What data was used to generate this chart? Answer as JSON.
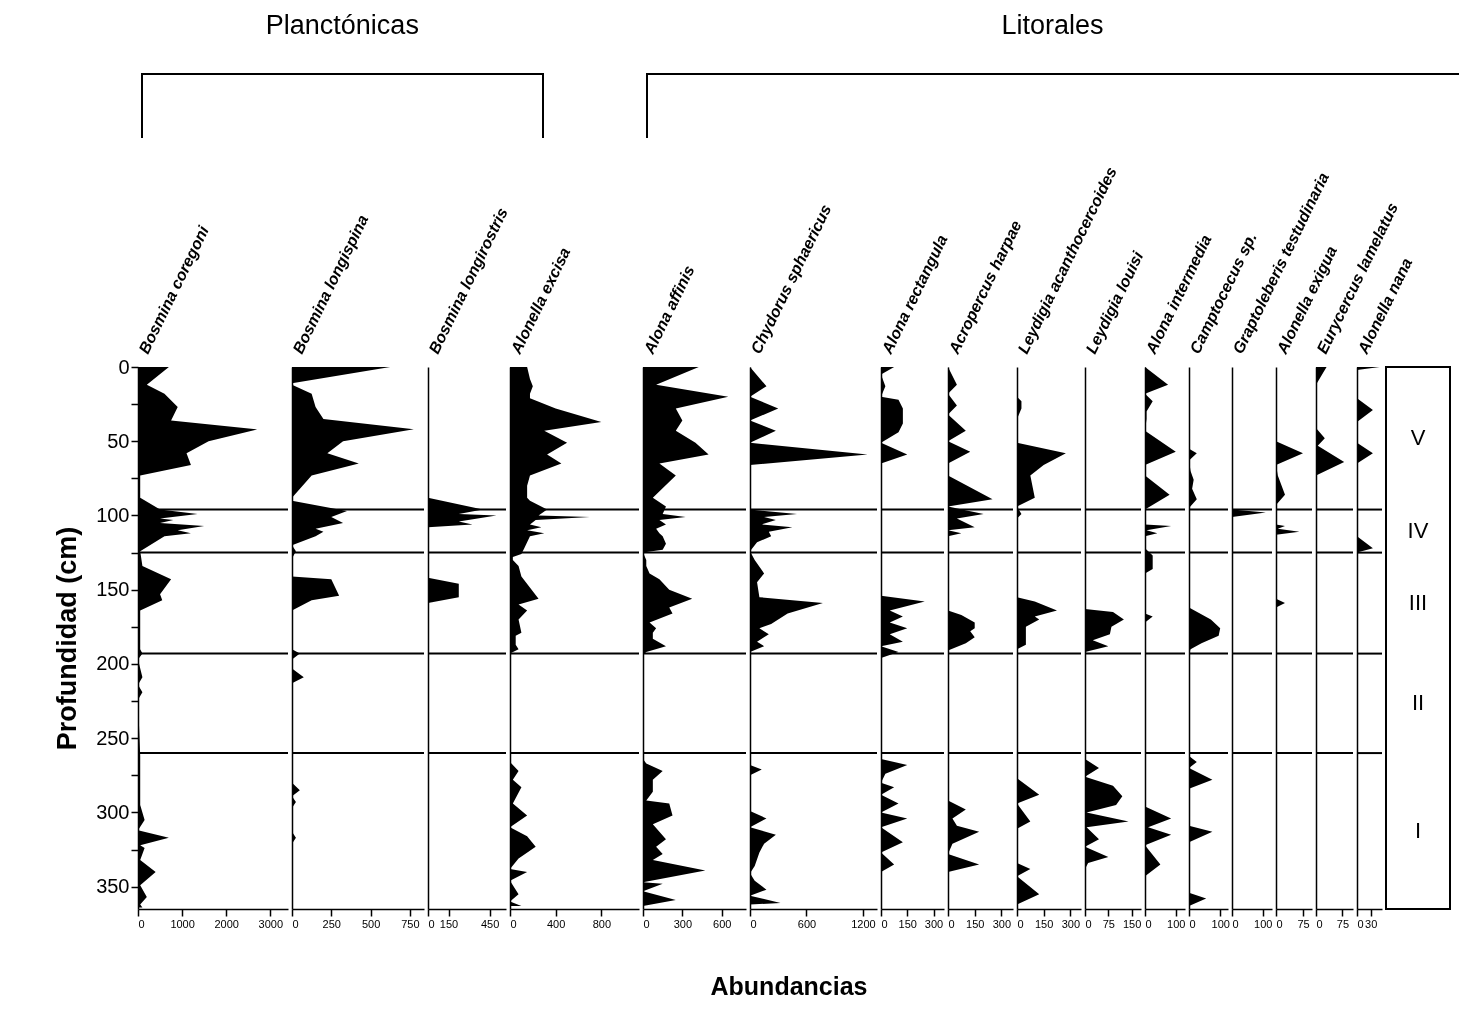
{
  "chart_data": [
    {
      "type": "area",
      "orientation": "horizontal",
      "title": "Bosmina coregoni",
      "ylabel": "Profundidad (cm)",
      "annotations": [
        "Planctónicas"
      ],
      "color": "#000000",
      "x": [
        0,
        12,
        18,
        27,
        36,
        42,
        50,
        58,
        66,
        73,
        88,
        96,
        99,
        102,
        103,
        105,
        107,
        110,
        112,
        114,
        124,
        134,
        143,
        153,
        157,
        164,
        190,
        193,
        197,
        209,
        214,
        219,
        224,
        262,
        295,
        305,
        312,
        317,
        322,
        324,
        332,
        340,
        349,
        357,
        362,
        364
      ],
      "values": [
        700,
        200,
        600,
        900,
        750,
        2700,
        1600,
        1100,
        1200,
        50,
        50,
        500,
        1350,
        500,
        800,
        500,
        1500,
        900,
        1200,
        600,
        50,
        100,
        750,
        500,
        550,
        50,
        50,
        100,
        0,
        100,
        0,
        100,
        0,
        50,
        50,
        150,
        0,
        700,
        50,
        150,
        50,
        400,
        50,
        200,
        50,
        100
      ],
      "xlim": [
        0,
        3400
      ],
      "xticks": [
        0,
        1000,
        2000,
        3000
      ],
      "ylim": [
        365,
        0
      ],
      "yticks": [
        0,
        {
          "value": 25,
          "label": null
        },
        50,
        {
          "value": 75,
          "label": null
        },
        100,
        {
          "value": 125,
          "label": null
        },
        150,
        {
          "value": 175,
          "label": null
        },
        200,
        {
          "value": 225,
          "label": null
        },
        250,
        {
          "value": 275,
          "label": null
        },
        300,
        {
          "value": 325,
          "label": null
        },
        350
      ],
      "ref_lines": [
        {
          "axis": "y",
          "value": 96
        },
        {
          "axis": "y",
          "value": 125
        },
        {
          "axis": "y",
          "value": 193
        },
        {
          "axis": "y",
          "value": 260
        }
      ]
    },
    {
      "type": "area",
      "orientation": "horizontal",
      "title": "Bosmina longispina",
      "color": "#000000",
      "tick_labels": "x",
      "x": [
        0,
        11,
        12,
        18,
        27,
        35,
        42,
        50,
        58,
        65,
        73,
        88,
        90,
        97,
        101,
        105,
        109,
        111,
        114,
        120,
        124,
        129,
        141,
        143,
        154,
        157,
        164,
        190,
        193,
        197,
        203,
        209,
        213,
        280,
        285,
        289,
        293,
        297,
        313,
        317,
        321,
        364
      ],
      "values": [
        625,
        0,
        0,
        125,
        150,
        200,
        775,
        325,
        225,
        425,
        125,
        0,
        0,
        350,
        250,
        325,
        150,
        200,
        150,
        0,
        25,
        0,
        0,
        250,
        300,
        125,
        0,
        0,
        50,
        0,
        0,
        75,
        0,
        0,
        50,
        0,
        25,
        0,
        0,
        25,
        0,
        0
      ],
      "xlim": [
        0,
        840
      ],
      "xticks": [
        0,
        250,
        500,
        750
      ],
      "ylim": [
        365,
        0
      ],
      "ref_lines": [
        {
          "axis": "y",
          "value": 96
        },
        {
          "axis": "y",
          "value": 125
        },
        {
          "axis": "y",
          "value": 193
        },
        {
          "axis": "y",
          "value": 260
        }
      ]
    },
    {
      "type": "area",
      "orientation": "horizontal",
      "title": "Bosmina longirostris",
      "color": "#000000",
      "tick_labels": "x",
      "x": [
        0,
        88,
        96,
        99,
        100,
        104,
        106,
        108,
        142,
        146,
        155,
        159,
        364
      ],
      "values": [
        0,
        0,
        400,
        225,
        500,
        225,
        325,
        0,
        0,
        225,
        225,
        0,
        0
      ],
      "xlim": [
        0,
        570
      ],
      "xticks": [
        0,
        150,
        450
      ],
      "ylim": [
        365,
        0
      ],
      "ref_lines": [
        {
          "axis": "y",
          "value": 96
        },
        {
          "axis": "y",
          "value": 125
        },
        {
          "axis": "y",
          "value": 193
        },
        {
          "axis": "y",
          "value": 260
        }
      ]
    },
    {
      "type": "area",
      "orientation": "horizontal",
      "title": "Alonella excisa",
      "color": "#000000",
      "tick_labels": "x",
      "x": [
        0,
        8,
        13,
        18,
        21,
        28,
        37,
        43,
        51,
        59,
        65,
        73,
        80,
        88,
        90,
        96,
        100,
        101,
        103,
        106,
        108,
        110,
        112,
        114,
        122,
        126,
        128,
        130,
        134,
        141,
        156,
        160,
        164,
        170,
        179,
        181,
        187,
        190,
        193,
        266,
        272,
        278,
        283,
        294,
        302,
        310,
        316,
        323,
        331,
        338,
        340,
        346,
        355,
        360,
        363
      ],
      "values": [
        150,
        175,
        200,
        175,
        175,
        400,
        800,
        300,
        500,
        325,
        450,
        175,
        150,
        150,
        175,
        325,
        250,
        700,
        225,
        175,
        275,
        150,
        300,
        175,
        125,
        100,
        25,
        25,
        75,
        100,
        250,
        75,
        150,
        75,
        100,
        50,
        50,
        75,
        0,
        0,
        75,
        25,
        100,
        25,
        150,
        0,
        150,
        225,
        75,
        0,
        150,
        0,
        75,
        0,
        100
      ],
      "xlim": [
        0,
        1130
      ],
      "xticks": [
        0,
        400,
        800
      ],
      "ylim": [
        365,
        0
      ],
      "ref_lines": [
        {
          "axis": "y",
          "value": 96
        },
        {
          "axis": "y",
          "value": 125
        },
        {
          "axis": "y",
          "value": 193
        },
        {
          "axis": "y",
          "value": 260
        }
      ]
    },
    {
      "type": "area",
      "orientation": "horizontal",
      "title": "Alona affinis",
      "annotations": [
        "Litorales"
      ],
      "color": "#000000",
      "tick_labels": "x",
      "x": [
        0,
        12,
        20,
        28,
        36,
        43,
        51,
        59,
        65,
        73,
        88,
        94,
        99,
        101,
        103,
        106,
        109,
        112,
        114,
        119,
        123,
        125,
        130,
        134,
        139,
        143,
        150,
        156,
        162,
        166,
        172,
        176,
        179,
        183,
        188,
        192,
        194,
        264,
        267,
        272,
        278,
        286,
        292,
        294,
        302,
        308,
        318,
        323,
        328,
        332,
        339,
        347,
        348,
        353,
        359,
        363
      ],
      "values": [
        425,
        100,
        650,
        250,
        300,
        250,
        400,
        500,
        125,
        250,
        75,
        175,
        150,
        325,
        125,
        175,
        100,
        125,
        150,
        175,
        150,
        0,
        25,
        25,
        50,
        125,
        200,
        375,
        200,
        225,
        50,
        100,
        75,
        75,
        175,
        25,
        0,
        0,
        25,
        150,
        75,
        75,
        25,
        200,
        225,
        75,
        175,
        100,
        150,
        75,
        475,
        0,
        150,
        0,
        250,
        0
      ],
      "xlim": [
        0,
        785
      ],
      "xticks": [
        0,
        300,
        600
      ],
      "ylim": [
        365,
        0
      ],
      "ref_lines": [
        {
          "axis": "y",
          "value": 96
        },
        {
          "axis": "y",
          "value": 125
        },
        {
          "axis": "y",
          "value": 193
        },
        {
          "axis": "y",
          "value": 260
        }
      ]
    },
    {
      "type": "area",
      "orientation": "horizontal",
      "title": "Chydorus sphaericus",
      "xlabel": "Abundancias",
      "color": "#000000",
      "tick_labels": "x",
      "x": [
        0,
        13,
        20,
        28,
        36,
        43,
        51,
        59,
        66,
        96,
        99,
        101,
        103,
        106,
        108,
        111,
        114,
        118,
        124,
        130,
        139,
        145,
        155,
        159,
        166,
        173,
        176,
        180,
        185,
        188,
        192,
        268,
        271,
        275,
        299,
        304,
        310,
        315,
        321,
        327,
        336,
        341,
        346,
        352,
        356,
        361,
        362
      ],
      "values": [
        0,
        175,
        0,
        300,
        0,
        275,
        0,
        1250,
        0,
        0,
        500,
        150,
        275,
        125,
        450,
        200,
        225,
        75,
        0,
        50,
        150,
        75,
        100,
        775,
        400,
        225,
        100,
        200,
        75,
        150,
        0,
        0,
        125,
        0,
        0,
        175,
        0,
        275,
        150,
        100,
        50,
        0,
        50,
        175,
        0,
        325,
        0
      ],
      "xlim": [
        0,
        1350
      ],
      "xticks": [
        0,
        600,
        1200
      ],
      "ylim": [
        365,
        0
      ],
      "ref_lines": [
        {
          "axis": "y",
          "value": 96
        },
        {
          "axis": "y",
          "value": 125
        },
        {
          "axis": "y",
          "value": 193
        },
        {
          "axis": "y",
          "value": 260
        }
      ]
    },
    {
      "type": "area",
      "orientation": "horizontal",
      "title": "Alona rectangula",
      "color": "#000000",
      "tick_labels": "x",
      "x": [
        0,
        5,
        13,
        20,
        22,
        28,
        38,
        44,
        51,
        59,
        65,
        154,
        158,
        164,
        168,
        172,
        176,
        180,
        185,
        188,
        192,
        196,
        264,
        268,
        274,
        280,
        283,
        288,
        294,
        300,
        304,
        310,
        320,
        327,
        335,
        340,
        364
      ],
      "values": [
        75,
        0,
        25,
        0,
        100,
        125,
        125,
        100,
        0,
        150,
        0,
        0,
        250,
        50,
        125,
        50,
        150,
        50,
        125,
        0,
        100,
        0,
        0,
        150,
        25,
        0,
        75,
        0,
        100,
        0,
        150,
        0,
        125,
        0,
        75,
        0,
        0
      ],
      "xlim": [
        0,
        360
      ],
      "xticks": [
        0,
        150,
        300
      ],
      "ylim": [
        365,
        0
      ],
      "ref_lines": [
        {
          "axis": "y",
          "value": 96
        },
        {
          "axis": "y",
          "value": 125
        },
        {
          "axis": "y",
          "value": 193
        },
        {
          "axis": "y",
          "value": 260
        }
      ]
    },
    {
      "type": "area",
      "orientation": "horizontal",
      "title": "Acropercus harpae",
      "color": "#000000",
      "tick_labels": "x",
      "x": [
        0,
        12,
        18,
        26,
        32,
        43,
        50,
        57,
        65,
        73,
        89,
        94,
        99,
        102,
        108,
        110,
        112,
        114,
        164,
        167,
        172,
        176,
        178,
        182,
        186,
        191,
        194,
        292,
        298,
        304,
        309,
        313,
        321,
        328,
        335,
        340,
        364
      ],
      "values": [
        0,
        50,
        0,
        50,
        0,
        100,
        0,
        125,
        0,
        0,
        250,
        0,
        200,
        50,
        150,
        0,
        75,
        0,
        0,
        75,
        150,
        150,
        125,
        150,
        100,
        0,
        0,
        0,
        100,
        25,
        50,
        175,
        25,
        0,
        175,
        0,
        0
      ],
      "xlim": [
        0,
        365
      ],
      "xticks": [
        0,
        150,
        300
      ],
      "ylim": [
        365,
        0
      ],
      "ref_lines": [
        {
          "axis": "y",
          "value": 96
        },
        {
          "axis": "y",
          "value": 125
        },
        {
          "axis": "y",
          "value": 193
        },
        {
          "axis": "y",
          "value": 260
        }
      ]
    },
    {
      "type": "area",
      "orientation": "horizontal",
      "title": "Leydigia acanthocercoides",
      "color": "#000000",
      "tick_labels": "x",
      "x": [
        0,
        20,
        23,
        28,
        35,
        51,
        58,
        66,
        73,
        88,
        94,
        99,
        102,
        155,
        158,
        164,
        168,
        170,
        175,
        180,
        184,
        187,
        190,
        277,
        288,
        294,
        306,
        311,
        334,
        338,
        343,
        355,
        362
      ],
      "values": [
        0,
        0,
        25,
        25,
        0,
        0,
        275,
        150,
        75,
        100,
        0,
        25,
        0,
        0,
        100,
        225,
        100,
        125,
        50,
        50,
        50,
        50,
        0,
        0,
        125,
        0,
        75,
        0,
        0,
        75,
        0,
        125,
        0
      ],
      "xlim": [
        0,
        360
      ],
      "xticks": [
        0,
        150,
        300
      ],
      "ylim": [
        365,
        0
      ],
      "ref_lines": [
        {
          "axis": "y",
          "value": 96
        },
        {
          "axis": "y",
          "value": 125
        },
        {
          "axis": "y",
          "value": 193
        },
        {
          "axis": "y",
          "value": 260
        }
      ]
    },
    {
      "type": "area",
      "orientation": "horizontal",
      "title": "Leydigia louisi",
      "color": "#000000",
      "tick_labels": "x",
      "x": [
        0,
        163,
        165,
        170,
        175,
        180,
        184,
        188,
        192,
        264,
        270,
        276,
        282,
        289,
        295,
        300,
        306,
        310,
        318,
        323,
        330,
        334,
        338,
        364
      ],
      "values": [
        0,
        0,
        90,
        125,
        85,
        80,
        25,
        75,
        0,
        0,
        45,
        0,
        90,
        120,
        100,
        5,
        140,
        5,
        45,
        0,
        75,
        10,
        0,
        0
      ],
      "xlim": [
        0,
        180
      ],
      "xticks": [
        0,
        75,
        150
      ],
      "ylim": [
        365,
        0
      ],
      "ref_lines": [
        {
          "axis": "y",
          "value": 96
        },
        {
          "axis": "y",
          "value": 125
        },
        {
          "axis": "y",
          "value": 193
        },
        {
          "axis": "y",
          "value": 260
        }
      ]
    },
    {
      "type": "area",
      "orientation": "horizontal",
      "title": "Alona intermedia",
      "color": "#000000",
      "tick_labels": "x",
      "x": [
        0,
        12,
        18,
        23,
        30,
        35,
        43,
        57,
        66,
        73,
        86,
        96,
        106,
        107,
        110,
        112,
        114,
        122,
        127,
        136,
        139,
        166,
        168,
        172,
        296,
        304,
        310,
        315,
        322,
        335,
        343,
        364
      ],
      "values": [
        0,
        75,
        0,
        25,
        5,
        5,
        0,
        100,
        0,
        0,
        80,
        0,
        0,
        85,
        5,
        40,
        0,
        0,
        25,
        25,
        0,
        0,
        25,
        0,
        0,
        85,
        10,
        85,
        0,
        50,
        0,
        0
      ],
      "xlim": [
        0,
        130
      ],
      "xticks": [
        0,
        100
      ],
      "ylim": [
        365,
        0
      ],
      "ref_lines": [
        {
          "axis": "y",
          "value": 96
        },
        {
          "axis": "y",
          "value": 125
        },
        {
          "axis": "y",
          "value": 193
        },
        {
          "axis": "y",
          "value": 260
        }
      ]
    },
    {
      "type": "area",
      "orientation": "horizontal",
      "title": "Camptocecus sp.",
      "color": "#000000",
      "tick_labels": "x",
      "x": [
        0,
        55,
        58,
        63,
        70,
        76,
        82,
        89,
        95,
        162,
        170,
        176,
        181,
        186,
        190,
        193,
        262,
        266,
        270,
        278,
        284,
        309,
        313,
        320,
        354,
        358,
        363
      ],
      "values": [
        0,
        0,
        25,
        0,
        5,
        15,
        10,
        25,
        0,
        0,
        70,
        100,
        95,
        40,
        5,
        0,
        0,
        25,
        0,
        75,
        0,
        0,
        75,
        0,
        0,
        55,
        0
      ],
      "xlim": [
        0,
        125
      ],
      "xticks": [
        0,
        100
      ],
      "ylim": [
        365,
        0
      ],
      "ref_lines": [
        {
          "axis": "y",
          "value": 96
        },
        {
          "axis": "y",
          "value": 125
        },
        {
          "axis": "y",
          "value": 193
        },
        {
          "axis": "y",
          "value": 260
        }
      ]
    },
    {
      "type": "area",
      "orientation": "horizontal",
      "title": "Graptoleberis testudinaria",
      "color": "#000000",
      "tick_labels": "x",
      "x": [
        0,
        96,
        98,
        101,
        364
      ],
      "values": [
        0,
        0,
        110,
        0,
        0
      ],
      "xlim": [
        0,
        130
      ],
      "xticks": [
        0,
        100
      ],
      "ylim": [
        365,
        0
      ],
      "ref_lines": [
        {
          "axis": "y",
          "value": 96
        },
        {
          "axis": "y",
          "value": 125
        },
        {
          "axis": "y",
          "value": 193
        },
        {
          "axis": "y",
          "value": 260
        }
      ]
    },
    {
      "type": "area",
      "orientation": "horizontal",
      "title": "Alonella exigua",
      "color": "#000000",
      "tick_labels": "x",
      "x": [
        0,
        50,
        58,
        66,
        73,
        86,
        93,
        106,
        107,
        109,
        111,
        113,
        156,
        159,
        162,
        364
      ],
      "values": [
        0,
        0,
        75,
        0,
        5,
        25,
        0,
        0,
        25,
        5,
        65,
        0,
        0,
        25,
        0,
        0
      ],
      "xlim": [
        0,
        100
      ],
      "xticks": [
        0,
        75
      ],
      "ylim": [
        365,
        0
      ],
      "ref_lines": [
        {
          "axis": "y",
          "value": 96
        },
        {
          "axis": "y",
          "value": 125
        },
        {
          "axis": "y",
          "value": 193
        },
        {
          "axis": "y",
          "value": 260
        }
      ]
    },
    {
      "type": "area",
      "orientation": "horizontal",
      "title": "Eurycercus lamelatus",
      "color": "#000000",
      "tick_labels": "x",
      "x": [
        0,
        12,
        41,
        48,
        53,
        64,
        73,
        364
      ],
      "values": [
        30,
        0,
        0,
        25,
        5,
        80,
        0,
        0
      ],
      "xlim": [
        0,
        105
      ],
      "xticks": [
        0,
        75
      ],
      "ylim": [
        365,
        0
      ],
      "ref_lines": [
        {
          "axis": "y",
          "value": 96
        },
        {
          "axis": "y",
          "value": 125
        },
        {
          "axis": "y",
          "value": 193
        },
        {
          "axis": "y",
          "value": 260
        }
      ]
    },
    {
      "type": "area",
      "orientation": "horizontal",
      "title": "Alonella nana",
      "color": "#000000",
      "tick_labels": "x",
      "x": [
        0,
        2,
        21,
        29,
        37,
        51,
        58,
        65,
        114,
        122,
        125,
        364
      ],
      "values": [
        50,
        0,
        0,
        35,
        0,
        0,
        35,
        0,
        0,
        35,
        0,
        0
      ],
      "xlim": [
        0,
        55
      ],
      "xticks": [
        0,
        30
      ],
      "ylim": [
        365,
        0
      ],
      "annotations": [
        "V",
        "IV",
        "III",
        "II",
        "I"
      ],
      "ref_lines": [
        {
          "axis": "y",
          "value": 96
        },
        {
          "axis": "y",
          "value": 125
        },
        {
          "axis": "y",
          "value": 193
        },
        {
          "axis": "y",
          "value": 260
        }
      ]
    }
  ]
}
